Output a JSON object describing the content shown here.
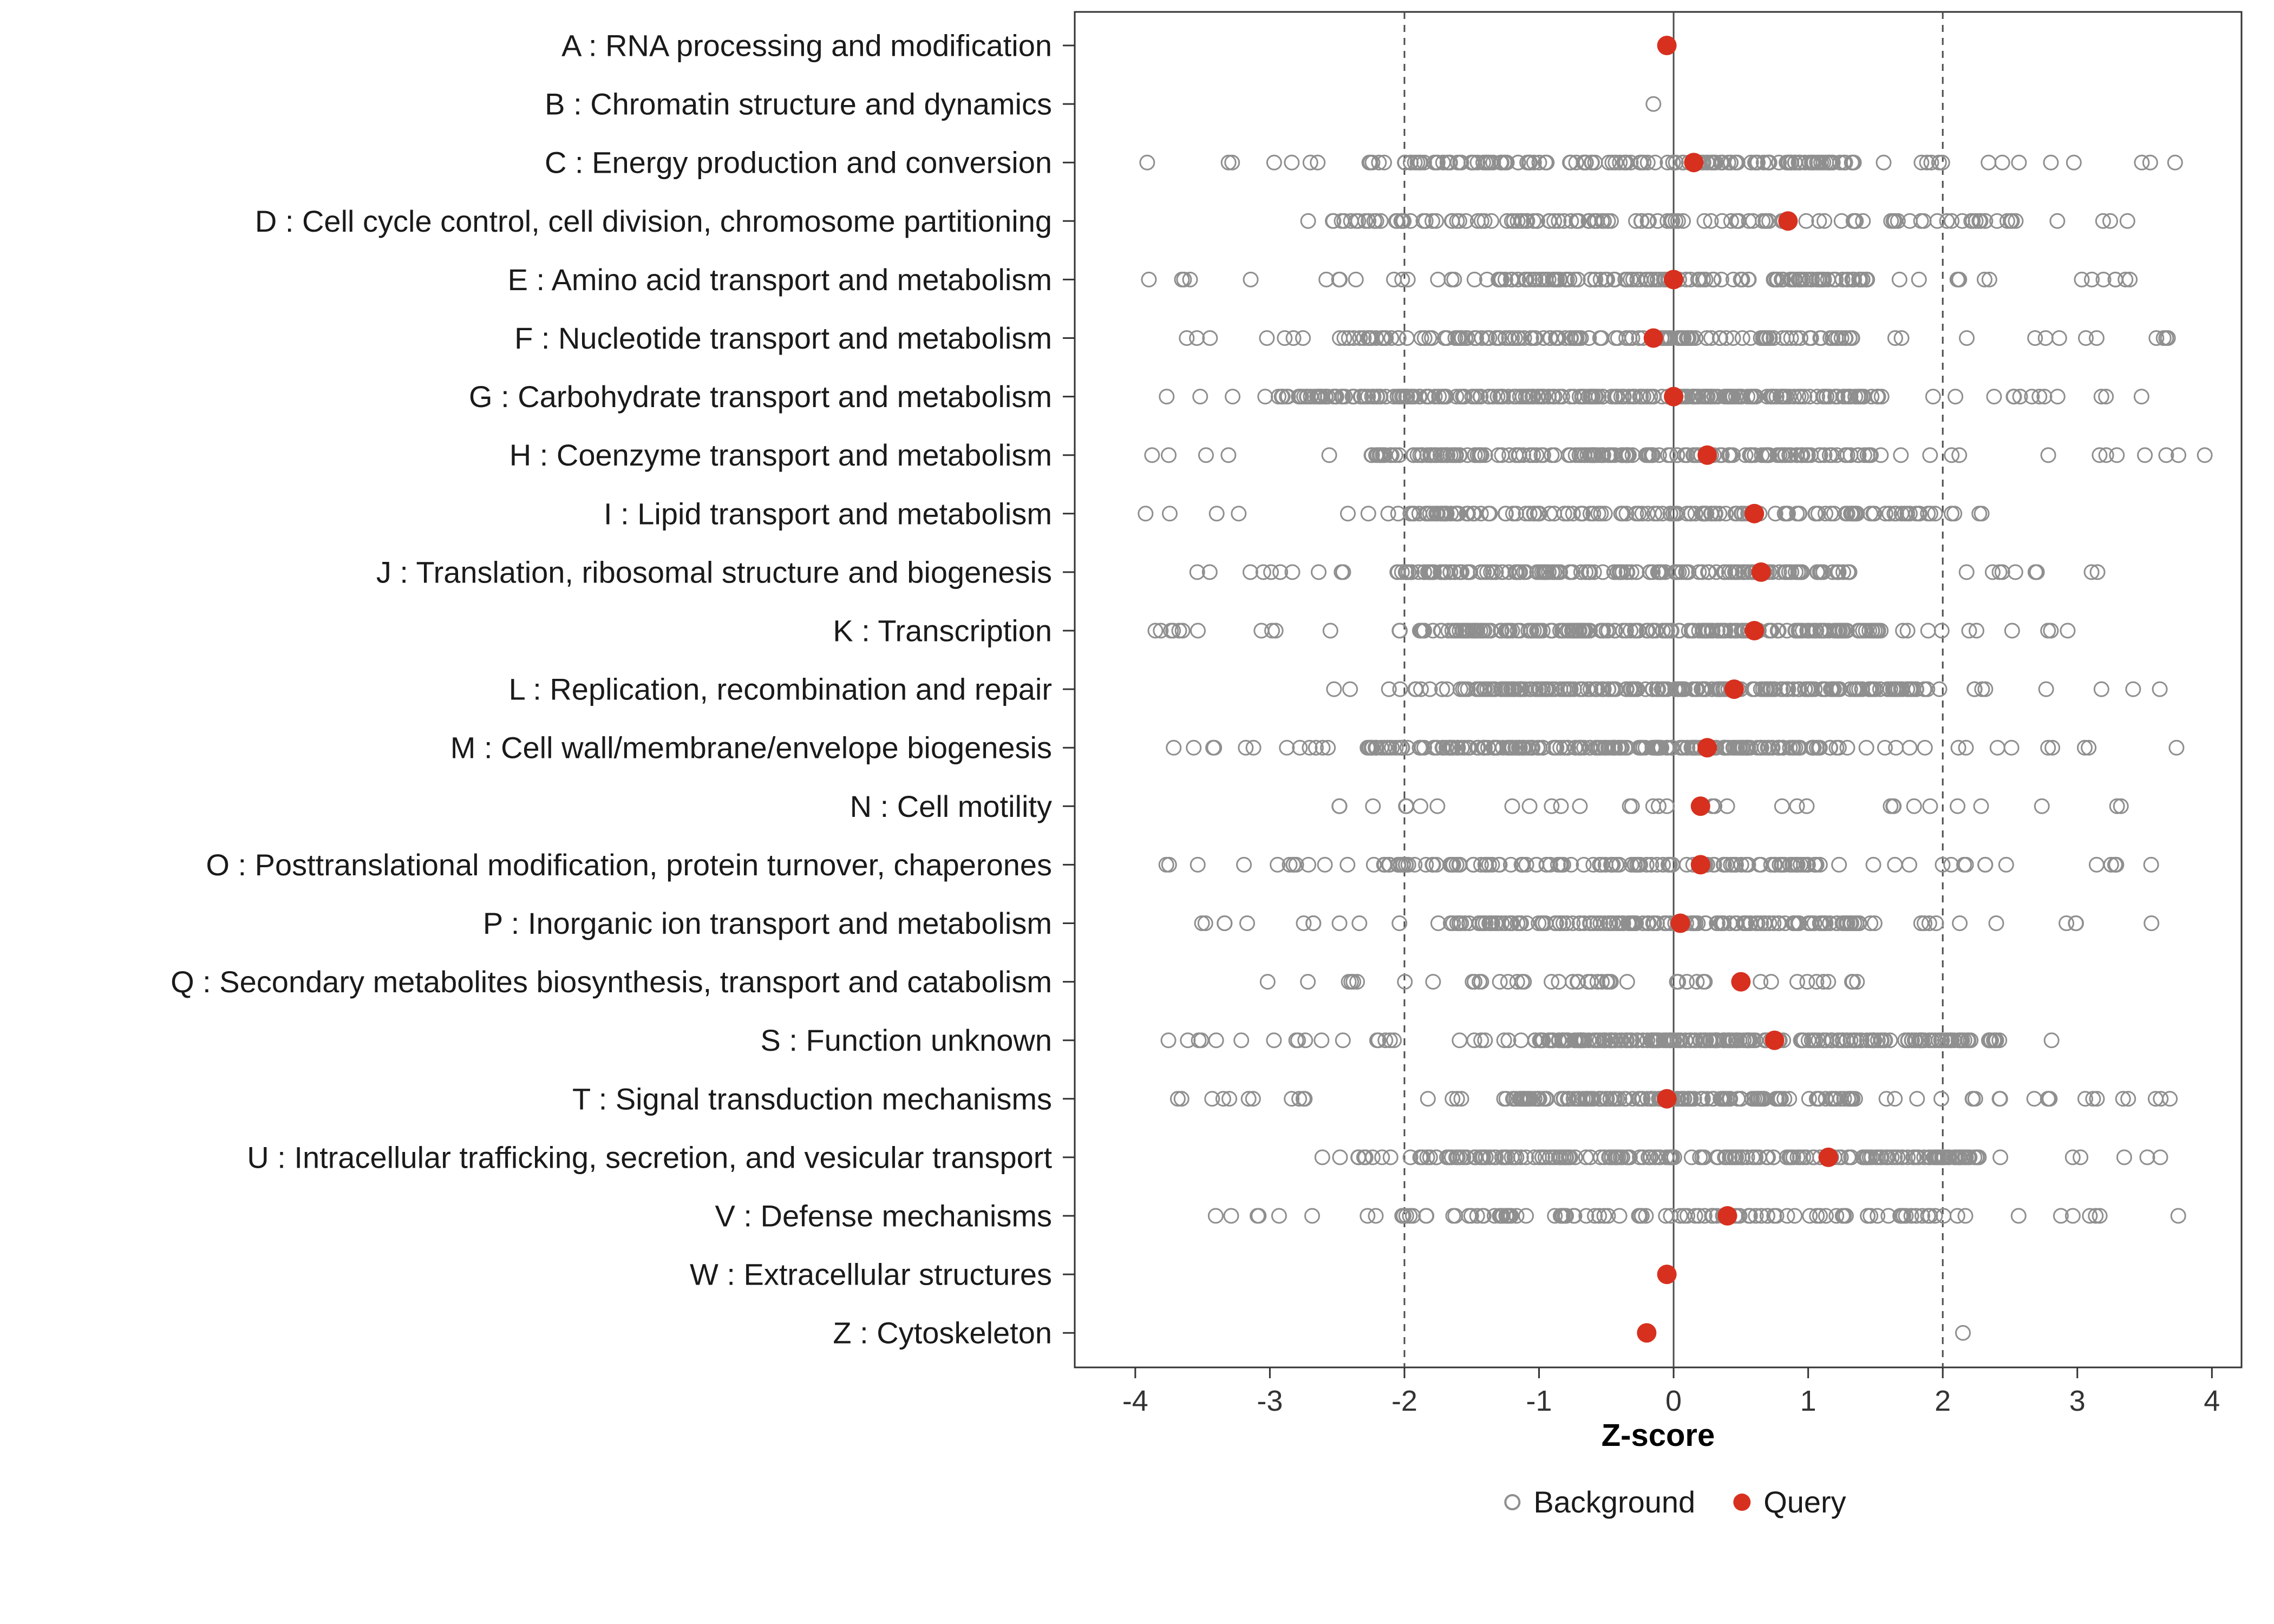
{
  "figure": {
    "background": "#ffffff"
  },
  "chart_data": {
    "type": "scatter",
    "variant": "one-dimensional strip / dot plot of COG functional category Z-scores",
    "title": "",
    "xlabel": "Z-score",
    "ylabel": "",
    "xlim": [
      -4.45,
      4.22
    ],
    "xticks": [
      -4,
      -3,
      -2,
      -1,
      0,
      1,
      2,
      3,
      4
    ],
    "grid": false,
    "reference_lines": {
      "dashed": [
        -2,
        2
      ],
      "solid": [
        0
      ]
    },
    "legend": {
      "position": "bottom",
      "background": "Background",
      "query": "Query"
    },
    "colors": {
      "query": "#d7301f",
      "background_stroke": "#8f8f8f",
      "axis": "#333333",
      "text": "#1a1a1a",
      "refline": "#4d4d4d",
      "panel_border": "#333333"
    },
    "categories": [
      {
        "id": "A",
        "label": "A : RNA processing and modification",
        "query": -0.05,
        "bg": {
          "n": 0
        }
      },
      {
        "id": "B",
        "label": "B : Chromatin structure and dynamics",
        "query": null,
        "bg": {
          "points": [
            -0.15
          ]
        }
      },
      {
        "id": "C",
        "label": "C : Energy production and conversion",
        "query": 0.15,
        "bg": {
          "n": 170,
          "min": -3.95,
          "max": 3.9,
          "dense_min": -2.05,
          "dense_max": 1.35,
          "dense_frac": 0.78
        }
      },
      {
        "id": "D",
        "label": "D : Cell cycle control, cell division, chromosome partitioning",
        "query": 0.85,
        "bg": {
          "n": 130,
          "min": -3.05,
          "max": 3.45,
          "dense_min": -2.6,
          "dense_max": 2.55,
          "dense_frac": 0.8
        }
      },
      {
        "id": "E",
        "label": "E : Amino acid transport and metabolism",
        "query": 0.0,
        "bg": {
          "n": 160,
          "min": -4.0,
          "max": 3.5,
          "dense_min": -1.35,
          "dense_max": 1.45,
          "dense_frac": 0.72
        }
      },
      {
        "id": "F",
        "label": "F : Nucleotide transport and metabolism",
        "query": -0.15,
        "bg": {
          "n": 160,
          "min": -3.95,
          "max": 3.8,
          "dense_min": -2.5,
          "dense_max": 1.35,
          "dense_frac": 0.75
        }
      },
      {
        "id": "G",
        "label": "G : Carbohydrate transport and metabolism",
        "query": 0.0,
        "bg": {
          "n": 270,
          "min": -3.85,
          "max": 3.5,
          "dense_min": -3.0,
          "dense_max": 1.55,
          "dense_frac": 0.82
        }
      },
      {
        "id": "H",
        "label": "H : Coenzyme transport and metabolism",
        "query": 0.25,
        "bg": {
          "n": 190,
          "min": -3.9,
          "max": 3.95,
          "dense_min": -2.3,
          "dense_max": 1.5,
          "dense_frac": 0.78
        }
      },
      {
        "id": "I",
        "label": "I : Lipid transport and metabolism",
        "query": 0.6,
        "bg": {
          "n": 150,
          "min": -4.0,
          "max": 2.45,
          "dense_min": -2.05,
          "dense_max": 2.3,
          "dense_frac": 0.8
        }
      },
      {
        "id": "J",
        "label": "J : Translation, ribosomal structure and biogenesis",
        "query": 0.65,
        "bg": {
          "n": 180,
          "min": -3.7,
          "max": 3.15,
          "dense_min": -2.1,
          "dense_max": 1.35,
          "dense_frac": 0.78
        }
      },
      {
        "id": "K",
        "label": "K : Transcription",
        "query": 0.6,
        "bg": {
          "n": 230,
          "min": -3.9,
          "max": 3.05,
          "dense_min": -1.9,
          "dense_max": 1.55,
          "dense_frac": 0.8
        }
      },
      {
        "id": "L",
        "label": "L : Replication, recombination and repair",
        "query": 0.45,
        "bg": {
          "n": 240,
          "min": -2.6,
          "max": 3.7,
          "dense_min": -1.6,
          "dense_max": 1.9,
          "dense_frac": 0.8
        }
      },
      {
        "id": "M",
        "label": "M : Cell wall/membrane/envelope biogenesis",
        "query": 0.25,
        "bg": {
          "n": 250,
          "min": -4.0,
          "max": 3.8,
          "dense_min": -2.3,
          "dense_max": 1.25,
          "dense_frac": 0.8
        }
      },
      {
        "id": "N",
        "label": "N : Cell motility",
        "query": 0.2,
        "bg": {
          "n": 34,
          "min": -3.5,
          "max": 3.55,
          "dense_min": -3.5,
          "dense_max": 3.55,
          "dense_frac": 0
        }
      },
      {
        "id": "O",
        "label": "O : Posttranslational modification, protein turnover, chaperones",
        "query": 0.2,
        "bg": {
          "n": 150,
          "min": -3.9,
          "max": 3.6,
          "dense_min": -2.2,
          "dense_max": 1.1,
          "dense_frac": 0.7
        }
      },
      {
        "id": "P",
        "label": "P : Inorganic ion transport and metabolism",
        "query": 0.05,
        "bg": {
          "n": 170,
          "min": -3.55,
          "max": 3.6,
          "dense_min": -1.7,
          "dense_max": 1.5,
          "dense_frac": 0.75
        }
      },
      {
        "id": "Q",
        "label": "Q : Secondary metabolites biosynthesis, transport and catabolism",
        "query": 0.5,
        "bg": {
          "n": 48,
          "min": -3.6,
          "max": 1.45,
          "dense_min": -2.4,
          "dense_max": 1.2,
          "dense_frac": 0.5
        }
      },
      {
        "id": "S",
        "label": "S : Function unknown",
        "query": 0.75,
        "bg": {
          "n": 250,
          "min": -3.8,
          "max": 3.5,
          "dense_min": -1.05,
          "dense_max": 2.45,
          "dense_frac": 0.8
        }
      },
      {
        "id": "T",
        "label": "T : Signal transduction mechanisms",
        "query": -0.05,
        "bg": {
          "n": 190,
          "min": -3.7,
          "max": 3.9,
          "dense_min": -1.25,
          "dense_max": 1.35,
          "dense_frac": 0.72
        }
      },
      {
        "id": "U",
        "label": "U : Intracellular trafficking, secretion, and vesicular transport",
        "query": 1.15,
        "bg": {
          "n": 210,
          "min": -2.75,
          "max": 3.75,
          "dense_min": -2.35,
          "dense_max": 2.3,
          "dense_frac": 0.82
        }
      },
      {
        "id": "V",
        "label": "V : Defense mechanisms",
        "query": 0.4,
        "bg": {
          "n": 120,
          "min": -3.55,
          "max": 3.8,
          "dense_min": -2.05,
          "dense_max": 2.0,
          "dense_frac": 0.7
        }
      },
      {
        "id": "W",
        "label": "W : Extracellular structures",
        "query": -0.05,
        "bg": {
          "n": 0
        }
      },
      {
        "id": "Z",
        "label": "Z : Cytoskeleton",
        "query": -0.2,
        "bg": {
          "points": [
            2.15
          ]
        }
      }
    ]
  }
}
